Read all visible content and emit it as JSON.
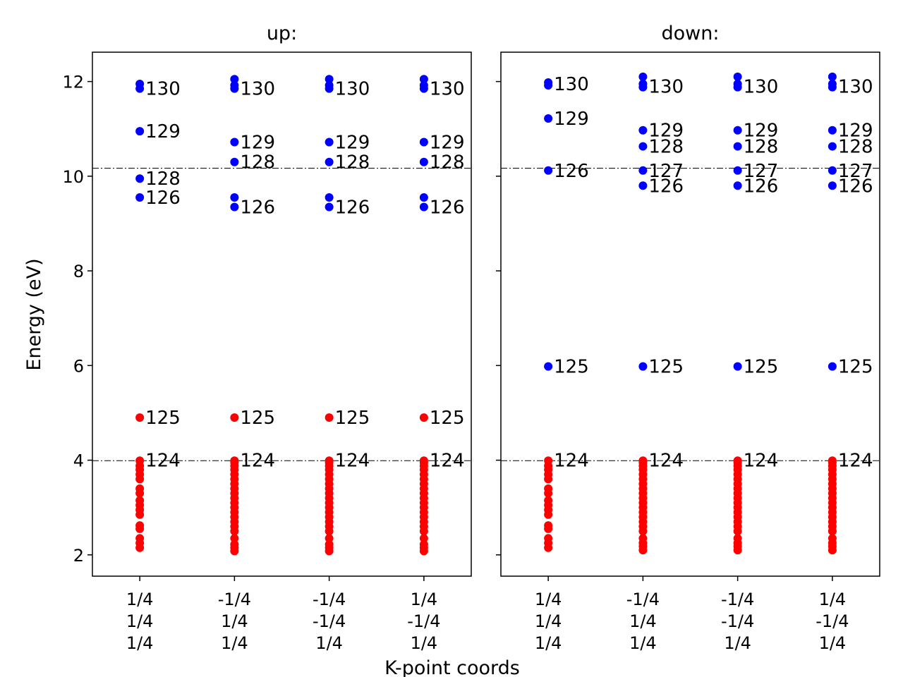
{
  "figure": {
    "ylabel": "Energy (eV)",
    "xlabel": "K-point coords"
  },
  "chart_data": [
    {
      "type": "scatter",
      "title": "up:",
      "ylim": [
        1.55,
        12.62
      ],
      "yticks": [
        2,
        4,
        6,
        8,
        10,
        12
      ],
      "kpoints": [
        [
          "1/4",
          "1/4",
          "1/4"
        ],
        [
          "-1/4",
          "1/4",
          "1/4"
        ],
        [
          "-1/4",
          "-1/4",
          "1/4"
        ],
        [
          "1/4",
          "-1/4",
          "1/4"
        ]
      ],
      "hlines": [
        10.17,
        3.99
      ],
      "colors": {
        "occupied": "#ff0000",
        "unoccupied": "#0000ff"
      },
      "occupied": [
        [
          2.15,
          2.25,
          2.35,
          2.55,
          2.62,
          2.85,
          2.95,
          3.05,
          3.15,
          3.3,
          3.4,
          3.6,
          3.7,
          3.8,
          3.88,
          3.99
        ],
        [
          2.08,
          2.15,
          2.22,
          2.35,
          2.5,
          2.6,
          2.7,
          2.8,
          2.9,
          3.0,
          3.1,
          3.2,
          3.3,
          3.4,
          3.5,
          3.6,
          3.7,
          3.8,
          3.88,
          3.95,
          3.99
        ],
        [
          2.08,
          2.15,
          2.22,
          2.35,
          2.5,
          2.6,
          2.7,
          2.8,
          2.9,
          3.0,
          3.1,
          3.2,
          3.3,
          3.4,
          3.5,
          3.6,
          3.7,
          3.8,
          3.88,
          3.95,
          3.99
        ],
        [
          2.08,
          2.15,
          2.22,
          2.35,
          2.5,
          2.6,
          2.7,
          2.8,
          2.9,
          3.0,
          3.1,
          3.2,
          3.3,
          3.4,
          3.5,
          3.6,
          3.7,
          3.8,
          3.88,
          3.95,
          3.99
        ]
      ],
      "extra_points": [
        [
          {
            "y": 4.9,
            "color": "#ff0000"
          },
          {
            "y": 9.55,
            "color": "#0000ff"
          },
          {
            "y": 9.95,
            "color": "#0000ff"
          },
          {
            "y": 10.95,
            "color": "#0000ff"
          },
          {
            "y": 11.85,
            "color": "#0000ff"
          },
          {
            "y": 11.95,
            "color": "#0000ff"
          }
        ],
        [
          {
            "y": 4.9,
            "color": "#ff0000"
          },
          {
            "y": 9.35,
            "color": "#0000ff"
          },
          {
            "y": 9.55,
            "color": "#0000ff"
          },
          {
            "y": 10.3,
            "color": "#0000ff"
          },
          {
            "y": 10.72,
            "color": "#0000ff"
          },
          {
            "y": 11.85,
            "color": "#0000ff"
          },
          {
            "y": 11.92,
            "color": "#0000ff"
          },
          {
            "y": 12.05,
            "color": "#0000ff"
          }
        ],
        [
          {
            "y": 4.9,
            "color": "#ff0000"
          },
          {
            "y": 9.35,
            "color": "#0000ff"
          },
          {
            "y": 9.55,
            "color": "#0000ff"
          },
          {
            "y": 10.3,
            "color": "#0000ff"
          },
          {
            "y": 10.72,
            "color": "#0000ff"
          },
          {
            "y": 11.85,
            "color": "#0000ff"
          },
          {
            "y": 11.92,
            "color": "#0000ff"
          },
          {
            "y": 12.05,
            "color": "#0000ff"
          }
        ],
        [
          {
            "y": 4.9,
            "color": "#ff0000"
          },
          {
            "y": 9.35,
            "color": "#0000ff"
          },
          {
            "y": 9.55,
            "color": "#0000ff"
          },
          {
            "y": 10.3,
            "color": "#0000ff"
          },
          {
            "y": 10.72,
            "color": "#0000ff"
          },
          {
            "y": 11.85,
            "color": "#0000ff"
          },
          {
            "y": 11.92,
            "color": "#0000ff"
          },
          {
            "y": 12.05,
            "color": "#0000ff"
          }
        ]
      ],
      "labels": [
        [
          {
            "text": "124",
            "y": 4.0
          },
          {
            "text": "125",
            "y": 4.9
          },
          {
            "text": "126",
            "y": 9.55
          },
          {
            "text": "128",
            "y": 9.95
          },
          {
            "text": "129",
            "y": 10.95
          },
          {
            "text": "130",
            "y": 11.85
          }
        ],
        [
          {
            "text": "124",
            "y": 4.0
          },
          {
            "text": "125",
            "y": 4.9
          },
          {
            "text": "126",
            "y": 9.35
          },
          {
            "text": "128",
            "y": 10.3
          },
          {
            "text": "129",
            "y": 10.72
          },
          {
            "text": "130",
            "y": 11.85
          }
        ],
        [
          {
            "text": "124",
            "y": 4.0
          },
          {
            "text": "125",
            "y": 4.9
          },
          {
            "text": "126",
            "y": 9.35
          },
          {
            "text": "128",
            "y": 10.3
          },
          {
            "text": "129",
            "y": 10.72
          },
          {
            "text": "130",
            "y": 11.85
          }
        ],
        [
          {
            "text": "124",
            "y": 4.0
          },
          {
            "text": "125",
            "y": 4.9
          },
          {
            "text": "126",
            "y": 9.35
          },
          {
            "text": "128",
            "y": 10.3
          },
          {
            "text": "129",
            "y": 10.72
          },
          {
            "text": "130",
            "y": 11.85
          }
        ]
      ]
    },
    {
      "type": "scatter",
      "title": "down:",
      "ylim": [
        1.55,
        12.62
      ],
      "yticks": [
        2,
        4,
        6,
        8,
        10,
        12
      ],
      "kpoints": [
        [
          "1/4",
          "1/4",
          "1/4"
        ],
        [
          "-1/4",
          "1/4",
          "1/4"
        ],
        [
          "-1/4",
          "-1/4",
          "1/4"
        ],
        [
          "1/4",
          "-1/4",
          "1/4"
        ]
      ],
      "hlines": [
        10.17,
        3.99
      ],
      "colors": {
        "occupied": "#ff0000",
        "unoccupied": "#0000ff"
      },
      "occupied": [
        [
          2.15,
          2.25,
          2.35,
          2.55,
          2.62,
          2.85,
          2.95,
          3.05,
          3.15,
          3.3,
          3.4,
          3.6,
          3.7,
          3.8,
          3.88,
          3.99
        ],
        [
          2.1,
          2.18,
          2.25,
          2.35,
          2.5,
          2.6,
          2.7,
          2.8,
          2.9,
          3.0,
          3.1,
          3.2,
          3.3,
          3.4,
          3.5,
          3.6,
          3.7,
          3.8,
          3.88,
          3.95,
          3.99
        ],
        [
          2.1,
          2.18,
          2.25,
          2.35,
          2.5,
          2.6,
          2.7,
          2.8,
          2.9,
          3.0,
          3.1,
          3.2,
          3.3,
          3.4,
          3.5,
          3.6,
          3.7,
          3.8,
          3.88,
          3.95,
          3.99
        ],
        [
          2.1,
          2.18,
          2.25,
          2.35,
          2.5,
          2.6,
          2.7,
          2.8,
          2.9,
          3.0,
          3.1,
          3.2,
          3.3,
          3.4,
          3.5,
          3.6,
          3.7,
          3.8,
          3.88,
          3.95,
          3.99
        ]
      ],
      "extra_points": [
        [
          {
            "y": 5.98,
            "color": "#0000ff"
          },
          {
            "y": 10.12,
            "color": "#0000ff"
          },
          {
            "y": 11.22,
            "color": "#0000ff"
          },
          {
            "y": 11.92,
            "color": "#0000ff"
          },
          {
            "y": 11.98,
            "color": "#0000ff"
          }
        ],
        [
          {
            "y": 5.98,
            "color": "#0000ff"
          },
          {
            "y": 9.8,
            "color": "#0000ff"
          },
          {
            "y": 10.12,
            "color": "#0000ff"
          },
          {
            "y": 10.63,
            "color": "#0000ff"
          },
          {
            "y": 10.97,
            "color": "#0000ff"
          },
          {
            "y": 11.88,
            "color": "#0000ff"
          },
          {
            "y": 11.95,
            "color": "#0000ff"
          },
          {
            "y": 12.1,
            "color": "#0000ff"
          }
        ],
        [
          {
            "y": 5.98,
            "color": "#0000ff"
          },
          {
            "y": 9.8,
            "color": "#0000ff"
          },
          {
            "y": 10.12,
            "color": "#0000ff"
          },
          {
            "y": 10.63,
            "color": "#0000ff"
          },
          {
            "y": 10.97,
            "color": "#0000ff"
          },
          {
            "y": 11.88,
            "color": "#0000ff"
          },
          {
            "y": 11.95,
            "color": "#0000ff"
          },
          {
            "y": 12.1,
            "color": "#0000ff"
          }
        ],
        [
          {
            "y": 5.98,
            "color": "#0000ff"
          },
          {
            "y": 9.8,
            "color": "#0000ff"
          },
          {
            "y": 10.12,
            "color": "#0000ff"
          },
          {
            "y": 10.63,
            "color": "#0000ff"
          },
          {
            "y": 10.97,
            "color": "#0000ff"
          },
          {
            "y": 11.88,
            "color": "#0000ff"
          },
          {
            "y": 11.95,
            "color": "#0000ff"
          },
          {
            "y": 12.1,
            "color": "#0000ff"
          }
        ]
      ],
      "labels": [
        [
          {
            "text": "124",
            "y": 4.0
          },
          {
            "text": "125",
            "y": 5.98
          },
          {
            "text": "126",
            "y": 10.12
          },
          {
            "text": "129",
            "y": 11.22
          },
          {
            "text": "130",
            "y": 11.95
          }
        ],
        [
          {
            "text": "124",
            "y": 4.0
          },
          {
            "text": "125",
            "y": 5.98
          },
          {
            "text": "126",
            "y": 9.8
          },
          {
            "text": "127",
            "y": 10.12
          },
          {
            "text": "128",
            "y": 10.63
          },
          {
            "text": "129",
            "y": 10.97
          },
          {
            "text": "130",
            "y": 11.9
          }
        ],
        [
          {
            "text": "124",
            "y": 4.0
          },
          {
            "text": "125",
            "y": 5.98
          },
          {
            "text": "126",
            "y": 9.8
          },
          {
            "text": "127",
            "y": 10.12
          },
          {
            "text": "128",
            "y": 10.63
          },
          {
            "text": "129",
            "y": 10.97
          },
          {
            "text": "130",
            "y": 11.9
          }
        ],
        [
          {
            "text": "124",
            "y": 4.0
          },
          {
            "text": "125",
            "y": 5.98
          },
          {
            "text": "126",
            "y": 9.8
          },
          {
            "text": "127",
            "y": 10.12
          },
          {
            "text": "128",
            "y": 10.63
          },
          {
            "text": "129",
            "y": 10.97
          },
          {
            "text": "130",
            "y": 11.9
          }
        ]
      ]
    }
  ]
}
